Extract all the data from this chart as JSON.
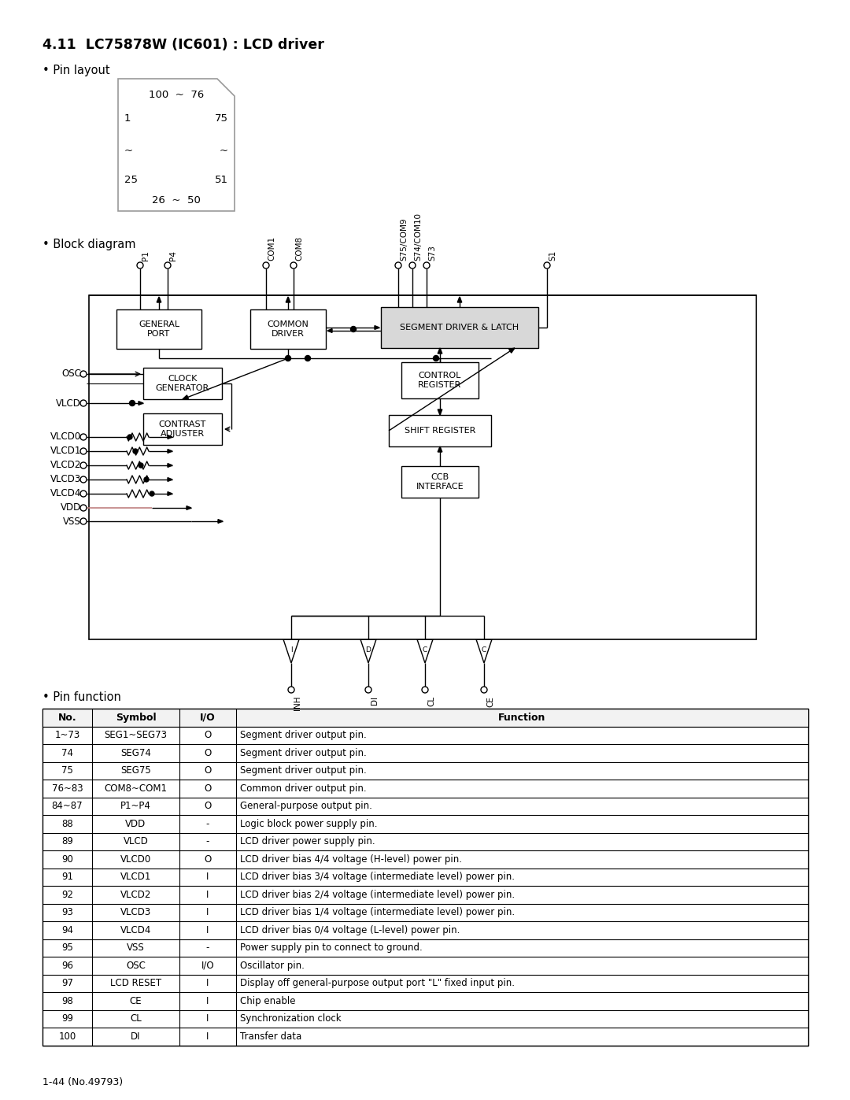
{
  "title": "4.11  LC75878W (IC601) : LCD driver",
  "pin_layout_label": "• Pin layout",
  "block_diagram_label": "• Block diagram",
  "pin_function_label": "• Pin function",
  "pin_layout": {
    "top": "100  ~  76",
    "left_top": "1",
    "right_top": "75",
    "left_tilde": "~",
    "right_tilde": "~",
    "left_bottom": "25",
    "right_bottom": "51",
    "bottom": "26  ~  50"
  },
  "table_headers": [
    "No.",
    "Symbol",
    "I/O",
    "Function"
  ],
  "table_rows": [
    [
      "1~73",
      "SEG1~SEG73",
      "O",
      "Segment driver output pin."
    ],
    [
      "74",
      "SEG74",
      "O",
      "Segment driver output pin."
    ],
    [
      "75",
      "SEG75",
      "O",
      "Segment driver output pin."
    ],
    [
      "76~83",
      "COM8~COM1",
      "O",
      "Common driver output pin."
    ],
    [
      "84~87",
      "P1~P4",
      "O",
      "General-purpose output pin."
    ],
    [
      "88",
      "VDD",
      "-",
      "Logic block power supply pin."
    ],
    [
      "89",
      "VLCD",
      "-",
      "LCD driver power supply pin."
    ],
    [
      "90",
      "VLCD0",
      "O",
      "LCD driver bias 4/4 voltage (H-level) power pin."
    ],
    [
      "91",
      "VLCD1",
      "I",
      "LCD driver bias 3/4 voltage (intermediate level) power pin."
    ],
    [
      "92",
      "VLCD2",
      "I",
      "LCD driver bias 2/4 voltage (intermediate level) power pin."
    ],
    [
      "93",
      "VLCD3",
      "I",
      "LCD driver bias 1/4 voltage (intermediate level) power pin."
    ],
    [
      "94",
      "VLCD4",
      "I",
      "LCD driver bias 0/4 voltage (L-level) power pin."
    ],
    [
      "95",
      "VSS",
      "-",
      "Power supply pin to connect to ground."
    ],
    [
      "96",
      "OSC",
      "I/O",
      "Oscillator pin."
    ],
    [
      "97",
      "LCD RESET",
      "I",
      "Display off general-purpose output port \"L\" fixed input pin."
    ],
    [
      "98",
      "CE",
      "I",
      "Chip enable"
    ],
    [
      "99",
      "CL",
      "I",
      "Synchronization clock"
    ],
    [
      "100",
      "DI",
      "I",
      "Transfer data"
    ]
  ],
  "footer": "1-44 (No.49793)",
  "bg_color": "#ffffff",
  "text_color": "#000000"
}
